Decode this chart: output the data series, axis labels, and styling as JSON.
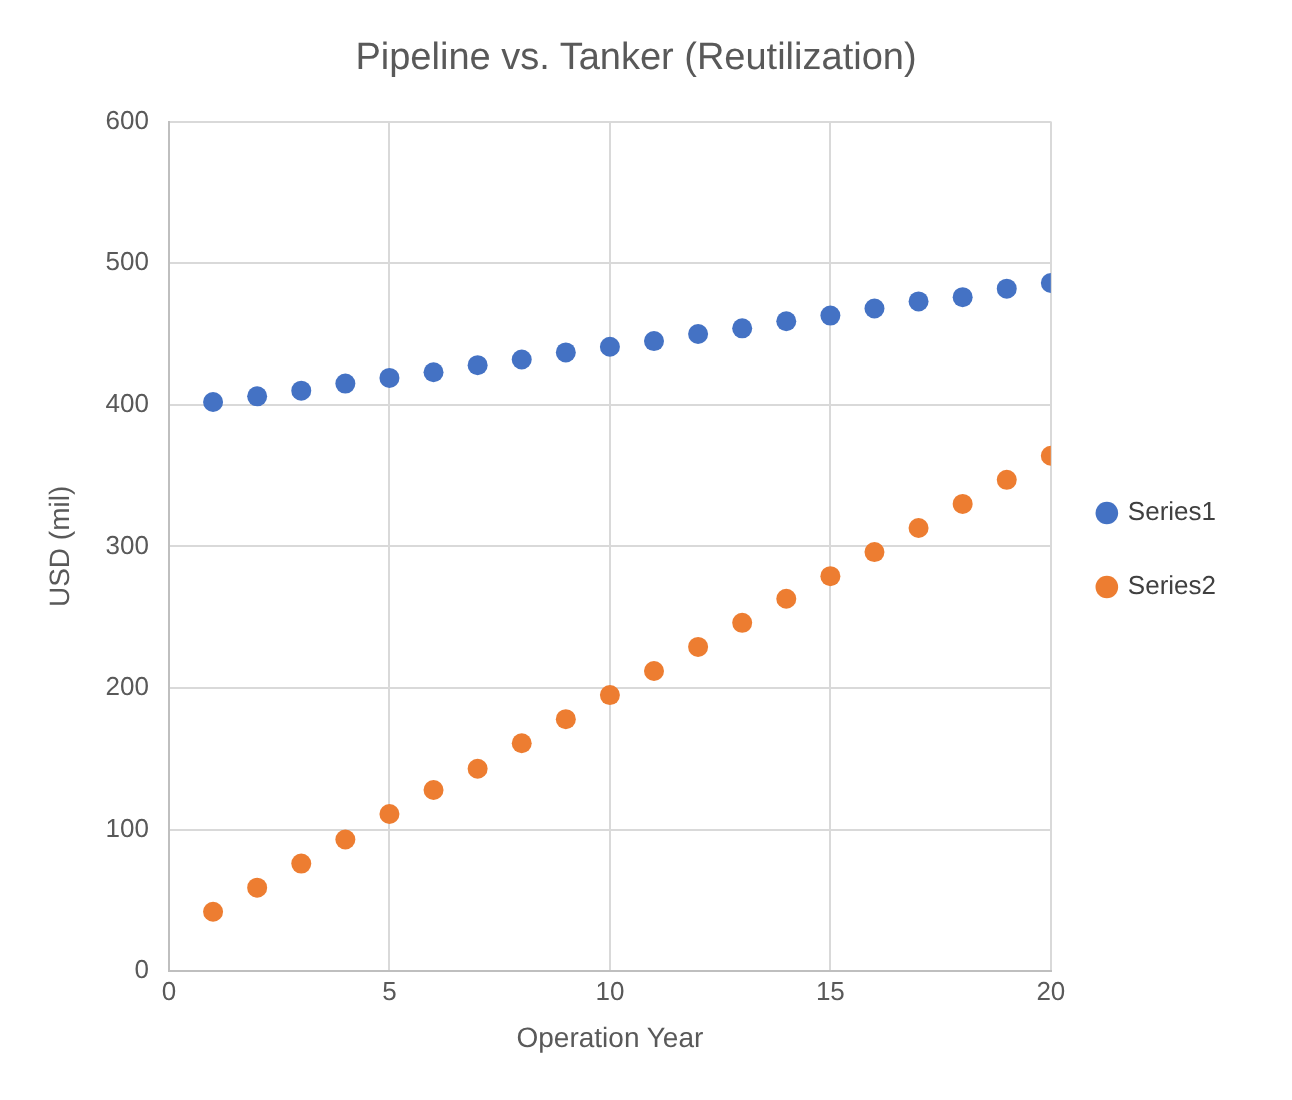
{
  "chart_data": {
    "type": "scatter",
    "title": "Pipeline vs. Tanker (Reutilization)",
    "xlabel": "Operation Year",
    "ylabel": "USD (mil)",
    "x": [
      1,
      2,
      3,
      4,
      5,
      6,
      7,
      8,
      9,
      10,
      11,
      12,
      13,
      14,
      15,
      16,
      17,
      18,
      19,
      20
    ],
    "series": [
      {
        "name": "Series1",
        "color": "#4472c4",
        "values": [
          402,
          406,
          410,
          415,
          419,
          423,
          428,
          432,
          437,
          441,
          445,
          450,
          454,
          459,
          463,
          468,
          473,
          476,
          482,
          486
        ]
      },
      {
        "name": "Series2",
        "color": "#ed7d31",
        "values": [
          42,
          59,
          76,
          93,
          111,
          128,
          143,
          161,
          178,
          195,
          212,
          229,
          246,
          263,
          279,
          296,
          313,
          330,
          347,
          364
        ]
      }
    ],
    "xlim": [
      0,
      20
    ],
    "xticks": [
      0,
      5,
      10,
      15,
      20
    ],
    "ylim": [
      0,
      600
    ],
    "yticks": [
      0,
      100,
      200,
      300,
      400,
      500,
      600
    ],
    "grid": true,
    "legend": "right",
    "marker": "circle"
  }
}
